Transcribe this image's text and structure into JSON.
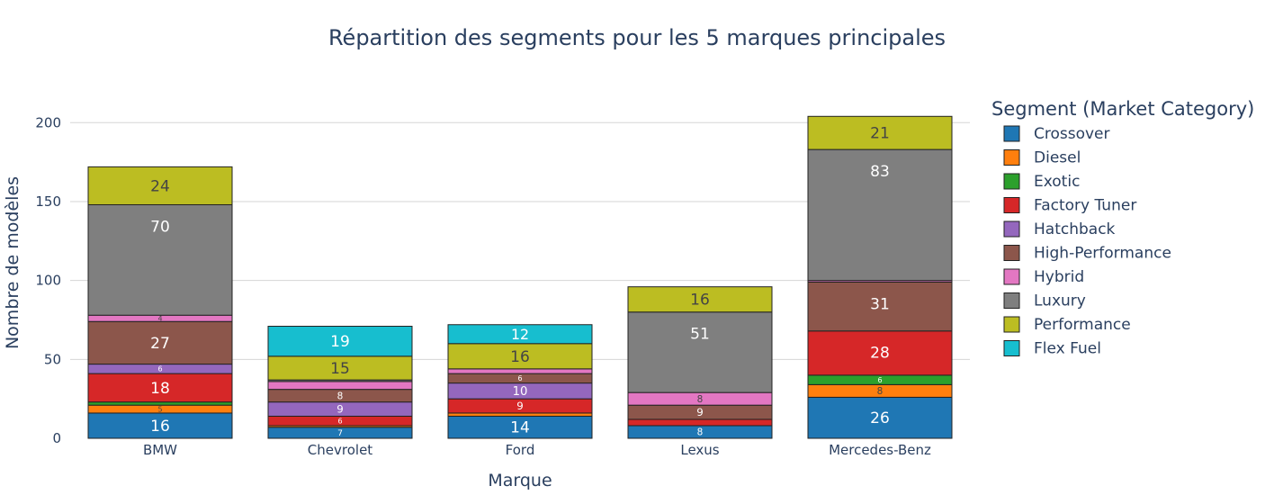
{
  "chart_data": {
    "type": "bar",
    "stacked": true,
    "title": "Répartition des segments pour les 5 marques principales",
    "xlabel": "Marque",
    "ylabel": "Nombre de modèles",
    "ylim": [
      0,
      215
    ],
    "yticks": [
      0,
      50,
      100,
      150,
      200
    ],
    "grid": true,
    "legend_title": "Segment (Market Category)",
    "legend_position": "right",
    "categories": [
      "BMW",
      "Chevrolet",
      "Ford",
      "Lexus",
      "Mercedes-Benz"
    ],
    "series": [
      {
        "name": "Crossover",
        "color": "#1f77b4",
        "values": [
          16,
          7,
          14,
          8,
          26
        ],
        "labels": [
          "16",
          "7",
          "14",
          "8",
          "26"
        ]
      },
      {
        "name": "Diesel",
        "color": "#ff7f0e",
        "values": [
          5,
          1,
          2,
          0,
          8
        ],
        "labels": [
          "5",
          "",
          "",
          "",
          "8"
        ]
      },
      {
        "name": "Exotic",
        "color": "#2ca02c",
        "values": [
          2,
          0,
          0,
          0,
          6
        ],
        "labels": [
          "",
          "",
          "",
          "",
          "6"
        ]
      },
      {
        "name": "Factory Tuner",
        "color": "#d62728",
        "values": [
          18,
          6,
          9,
          4,
          28
        ],
        "labels": [
          "18",
          "6",
          "9",
          "",
          "28"
        ]
      },
      {
        "name": "Hatchback",
        "color": "#9467bd",
        "values": [
          6,
          9,
          10,
          0,
          0
        ],
        "labels": [
          "6",
          "9",
          "10",
          "",
          ""
        ]
      },
      {
        "name": "High-Performance",
        "color": "#8c564b",
        "values": [
          27,
          8,
          6,
          9,
          31
        ],
        "labels": [
          "27",
          "8",
          "6",
          "9",
          "31"
        ]
      },
      {
        "name": "Hybrid",
        "color": "#e377c2",
        "values": [
          4,
          5,
          3,
          8,
          1
        ],
        "labels": [
          "4",
          "",
          "",
          "8",
          ""
        ]
      },
      {
        "name": "Luxury",
        "color": "#7f7f7f",
        "values": [
          70,
          1,
          0,
          51,
          83
        ],
        "labels": [
          "70",
          "",
          "",
          "51",
          "83"
        ]
      },
      {
        "name": "Performance",
        "color": "#bcbd22",
        "values": [
          24,
          15,
          16,
          16,
          21
        ],
        "labels": [
          "24",
          "15",
          "16",
          "16",
          "21"
        ]
      },
      {
        "name": "Flex Fuel",
        "color": "#17becf",
        "values": [
          0,
          19,
          12,
          0,
          0
        ],
        "labels": [
          "",
          "19",
          "12",
          "",
          ""
        ]
      }
    ]
  }
}
